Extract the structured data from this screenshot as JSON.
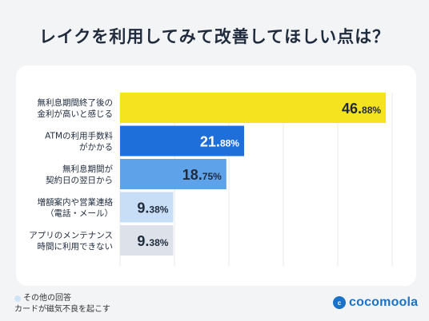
{
  "title": "レイクを利用してみて改善してほしい点は？",
  "chart_data": {
    "type": "bar",
    "orientation": "horizontal",
    "categories": [
      [
        "無利息期間終了後の",
        "金利が高いと感じる"
      ],
      [
        "ATMの利用手数料",
        "がかかる"
      ],
      [
        "無利息期間が",
        "契約日の翌日から"
      ],
      [
        "増額案内や営業連絡",
        "（電話・メール）"
      ],
      [
        "アプリのメンテナンス",
        "時間に利用できない"
      ]
    ],
    "values": [
      46.88,
      21.88,
      18.75,
      9.38,
      9.38
    ],
    "value_labels": [
      {
        "int": "46.",
        "dec": "88%"
      },
      {
        "int": "21.",
        "dec": "88%"
      },
      {
        "int": "18.",
        "dec": "75%"
      },
      {
        "int": "9.",
        "dec": "38%"
      },
      {
        "int": "9.",
        "dec": "38%"
      }
    ],
    "unit": "%",
    "xlim": [
      0,
      48
    ],
    "grid": true,
    "colors": [
      "#f6e31f",
      "#1e6fd9",
      "#5ea3ea",
      "#c8def6",
      "#dde2ea"
    ],
    "label_colors": [
      "#1f2a3c",
      "#ffffff",
      "#1f2a3c",
      "#1f2a3c",
      "#1f2a3c"
    ]
  },
  "footnote": {
    "line1": "その他の回答",
    "line2": "カードが磁気不良を起こす"
  },
  "logo": {
    "icon_text": "c",
    "text": "cocomoola",
    "color": "#1a73c8"
  }
}
